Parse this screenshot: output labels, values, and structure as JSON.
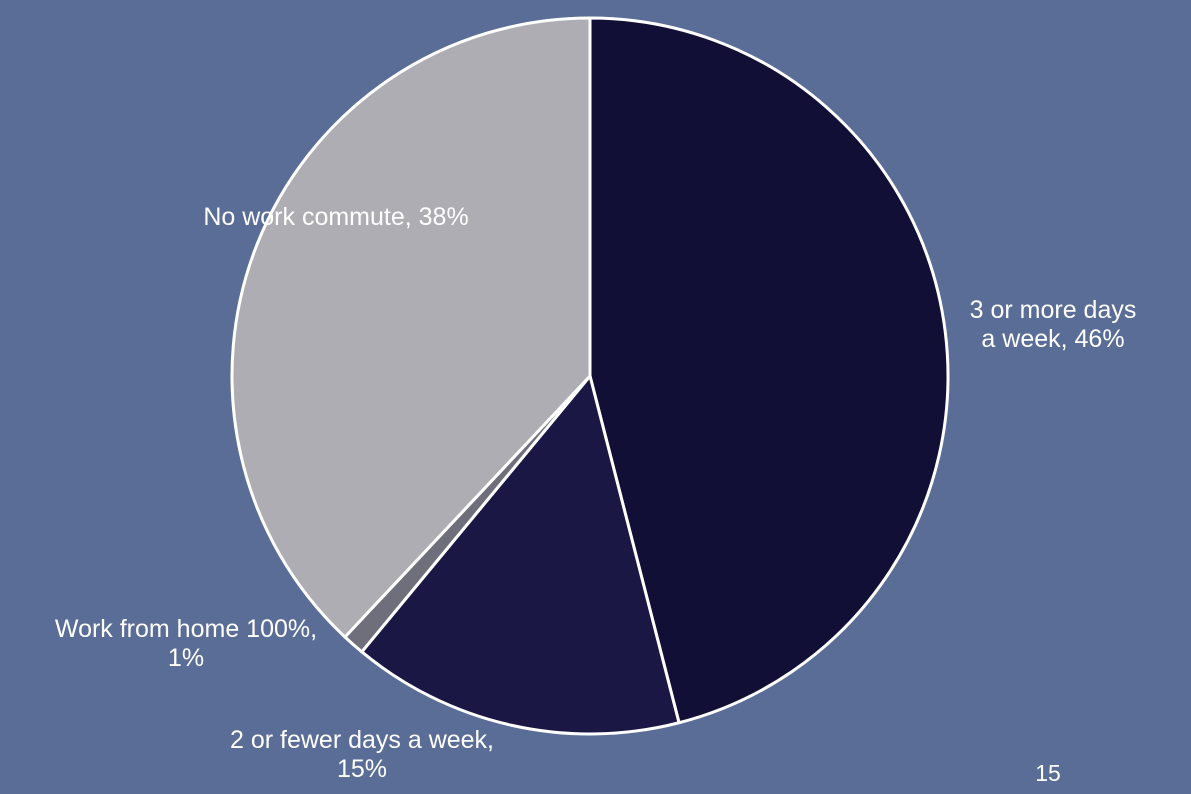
{
  "page_number": "15",
  "colors": {
    "background": "#5a6d96",
    "slice_outline": "#ffffff",
    "label_text": "#ffffff"
  },
  "chart_data": {
    "type": "pie",
    "title": "",
    "slices": [
      {
        "label": "3 or more days a week",
        "percent_label": "46%",
        "value": 46,
        "color": "#120f36",
        "label_lines": [
          "3 or more days",
          "a week, 46%"
        ]
      },
      {
        "label": "2 or fewer days a week",
        "percent_label": "15%",
        "value": 15,
        "color": "#1b1745",
        "label_lines": [
          "2 or fewer days a week,",
          "15%"
        ]
      },
      {
        "label": "Work from home 100%",
        "percent_label": "1%",
        "value": 1,
        "color": "#6f6f7c",
        "label_lines": [
          "Work from home 100%,",
          "1%"
        ]
      },
      {
        "label": "No work commute",
        "percent_label": "38%",
        "value": 38,
        "color": "#adadb3",
        "label_lines": [
          "No work commute, 38%"
        ]
      }
    ],
    "start_angle": "12 o'clock",
    "direction": "clockwise",
    "legend": "none"
  }
}
